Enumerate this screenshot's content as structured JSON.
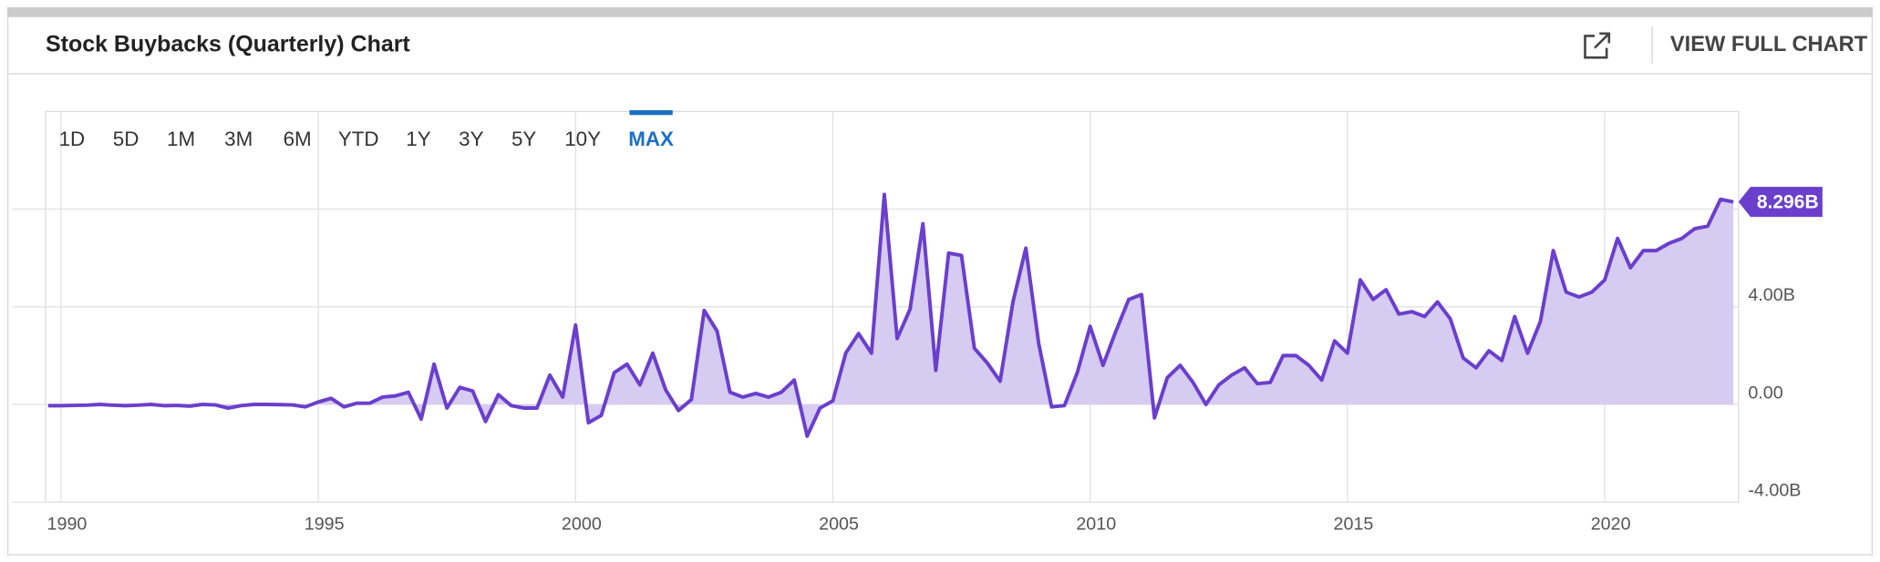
{
  "header": {
    "title": "Stock Buybacks (Quarterly) Chart",
    "action": "VIEW FULL CHART"
  },
  "range_buttons": [
    {
      "label": "1D"
    },
    {
      "label": "5D"
    },
    {
      "label": "1M"
    },
    {
      "label": "3M"
    },
    {
      "label": "6M"
    },
    {
      "label": "YTD"
    },
    {
      "label": "1Y"
    },
    {
      "label": "3Y"
    },
    {
      "label": "5Y"
    },
    {
      "label": "10Y"
    },
    {
      "label": "MAX",
      "active": true
    }
  ],
  "chart_data": {
    "type": "area",
    "x": [
      1989.75,
      1990,
      1990.25,
      1990.5,
      1990.75,
      1991,
      1991.25,
      1991.5,
      1991.75,
      1992,
      1992.25,
      1992.5,
      1992.75,
      1993,
      1993.25,
      1993.5,
      1993.75,
      1994,
      1994.25,
      1994.5,
      1994.75,
      1995,
      1995.25,
      1995.5,
      1995.75,
      1996,
      1996.25,
      1996.5,
      1996.75,
      1997,
      1997.25,
      1997.5,
      1997.75,
      1998,
      1998.25,
      1998.5,
      1998.75,
      1999,
      1999.25,
      1999.5,
      1999.75,
      2000,
      2000.25,
      2000.5,
      2000.75,
      2001,
      2001.25,
      2001.5,
      2001.75,
      2002,
      2002.25,
      2002.5,
      2002.75,
      2003,
      2003.25,
      2003.5,
      2003.75,
      2004,
      2004.25,
      2004.5,
      2004.75,
      2005,
      2005.25,
      2005.5,
      2005.75,
      2006,
      2006.25,
      2006.5,
      2006.75,
      2007,
      2007.25,
      2007.5,
      2007.75,
      2008,
      2008.25,
      2008.5,
      2008.75,
      2009,
      2009.25,
      2009.5,
      2009.75,
      2010,
      2010.25,
      2010.5,
      2010.75,
      2011,
      2011.25,
      2011.5,
      2011.75,
      2012,
      2012.25,
      2012.5,
      2012.75,
      2013,
      2013.25,
      2013.5,
      2013.75,
      2014,
      2014.25,
      2014.5,
      2014.75,
      2015,
      2015.25,
      2015.5,
      2015.75,
      2016,
      2016.25,
      2016.5,
      2016.75,
      2017,
      2017.25,
      2017.5,
      2017.75,
      2018,
      2018.25,
      2018.5,
      2018.75,
      2019,
      2019.25,
      2019.5,
      2019.75,
      2020,
      2020.25,
      2020.5,
      2020.75,
      2021,
      2021.25,
      2021.5,
      2021.75,
      2022,
      2022.25,
      2022.5
    ],
    "series": [
      {
        "color": "#6a3fcc",
        "fill": "#d6cbf0",
        "values": [
          -0.05,
          -0.05,
          -0.04,
          -0.03,
          0,
          -0.03,
          -0.05,
          -0.03,
          0,
          -0.05,
          -0.04,
          -0.07,
          0,
          -0.02,
          -0.15,
          -0.05,
          0,
          0,
          -0.01,
          -0.02,
          -0.1,
          0.1,
          0.25,
          -0.1,
          0.05,
          0.05,
          0.3,
          0.35,
          0.5,
          -0.6,
          1.65,
          -0.15,
          0.7,
          0.55,
          -0.7,
          0.4,
          -0.05,
          -0.15,
          -0.15,
          1.2,
          0.3,
          3.25,
          -0.75,
          -0.45,
          1.3,
          1.65,
          0.8,
          2.1,
          0.6,
          -0.25,
          0.2,
          3.85,
          3.0,
          0.5,
          0.3,
          0.45,
          0.3,
          0.5,
          1.0,
          -1.3,
          -0.15,
          0.15,
          2.1,
          2.9,
          2.1,
          8.6,
          2.7,
          3.9,
          7.4,
          1.4,
          6.2,
          6.1,
          2.3,
          1.7,
          0.95,
          4.2,
          6.4,
          2.5,
          -0.1,
          -0.05,
          1.3,
          3.2,
          1.6,
          3.0,
          4.3,
          4.5,
          -0.55,
          1.1,
          1.6,
          0.9,
          0.0,
          0.8,
          1.2,
          1.5,
          0.85,
          0.9,
          2.0,
          2.0,
          1.6,
          1.0,
          2.6,
          2.1,
          5.1,
          4.3,
          4.7,
          3.7,
          3.8,
          3.6,
          4.2,
          3.5,
          1.9,
          1.5,
          2.2,
          1.8,
          3.6,
          2.1,
          3.4,
          6.3,
          4.6,
          4.4,
          4.6,
          5.1,
          6.8,
          5.6,
          6.3,
          6.3,
          6.6,
          6.8,
          7.2,
          7.3,
          8.4,
          8.296
        ],
        "value_labels": [
          null,
          null,
          null,
          null,
          null,
          null,
          null,
          null,
          null,
          null,
          null,
          null,
          null,
          null,
          null,
          null,
          null,
          null,
          null,
          null,
          null,
          null,
          null,
          null,
          null,
          null,
          null,
          null,
          null,
          null,
          null,
          null,
          null,
          null,
          null,
          null,
          null,
          null,
          null,
          null,
          null,
          null,
          null,
          null,
          null,
          null,
          null,
          null,
          null,
          null,
          null,
          null,
          null,
          null,
          null,
          null,
          null,
          null,
          null,
          null,
          null,
          null,
          null,
          null,
          null,
          null,
          null,
          null,
          null,
          null,
          null,
          null,
          null,
          null,
          null,
          null,
          null,
          null,
          null,
          null,
          null,
          null,
          null,
          null,
          null,
          null,
          null,
          null,
          null,
          null,
          null,
          null,
          null,
          null,
          null,
          null,
          null,
          null,
          null,
          null,
          null,
          null,
          null,
          null,
          null,
          null,
          null,
          null,
          null,
          null,
          null,
          null,
          null,
          null,
          null,
          null,
          null,
          null,
          null,
          null,
          null,
          null,
          null,
          null,
          null,
          null,
          null,
          null,
          null,
          null,
          null,
          "8.296B"
        ]
      }
    ],
    "xlim": [
      1989.7,
      2022.6
    ],
    "xticks": [
      1990,
      1995,
      2000,
      2005,
      2010,
      2015,
      2020
    ],
    "ylim": [
      -4,
      12
    ],
    "yticks": [
      {
        "value": -4,
        "label": "-4.00B"
      },
      {
        "value": 0,
        "label": "0.00"
      },
      {
        "value": 4,
        "label": "4.00B"
      },
      {
        "value": 8,
        "label": null
      }
    ],
    "grid": true
  }
}
